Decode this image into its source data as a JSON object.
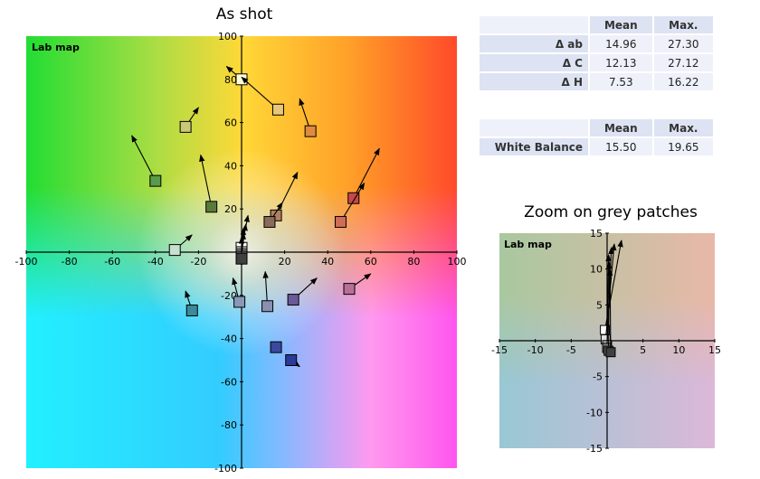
{
  "main_chart": {
    "title": "As shot",
    "map_label": "Lab map",
    "x_ticks": [
      -100,
      -80,
      -60,
      -40,
      -20,
      0,
      20,
      40,
      60,
      80,
      100
    ],
    "y_ticks": [
      100,
      80,
      60,
      40,
      20,
      0,
      -20,
      -40,
      -60,
      -80,
      -100
    ]
  },
  "zoom_chart": {
    "title": "Zoom on grey patches",
    "map_label": "Lab map",
    "x_ticks": [
      -15,
      -10,
      -5,
      0,
      5,
      10,
      15
    ],
    "y_ticks": [
      15,
      10,
      5,
      0,
      -5,
      -10,
      -15
    ]
  },
  "delta_table": {
    "headers": [
      "",
      "Mean",
      "Max."
    ],
    "rows": [
      {
        "label": "Δ ab",
        "mean": "14.96",
        "max": "27.30"
      },
      {
        "label": "Δ C",
        "mean": "12.13",
        "max": "27.12"
      },
      {
        "label": "Δ H",
        "mean": "7.53",
        "max": "16.22"
      }
    ]
  },
  "wb_table": {
    "headers": [
      "",
      "Mean",
      "Max."
    ],
    "rows": [
      {
        "label": "White Balance",
        "mean": "15.50",
        "max": "19.65"
      }
    ]
  },
  "chart_data": [
    {
      "type": "scatter",
      "title": "As shot",
      "xlim": [
        -100,
        100
      ],
      "ylim": [
        -100,
        100
      ],
      "grid": false,
      "points": [
        {
          "x": 0,
          "y": 80,
          "tx": -7,
          "ty": 86,
          "color": "#ffffd8"
        },
        {
          "x": 17,
          "y": 66,
          "tx": 0,
          "ty": 81,
          "color": "#e8c878"
        },
        {
          "x": 32,
          "y": 56,
          "tx": 27,
          "ty": 71,
          "color": "#e08a40"
        },
        {
          "x": -26,
          "y": 58,
          "tx": -20,
          "ty": 67,
          "color": "#c8c878"
        },
        {
          "x": -40,
          "y": 33,
          "tx": -51,
          "ty": 54,
          "color": "#5a9a4a"
        },
        {
          "x": -14,
          "y": 21,
          "tx": -19,
          "ty": 45,
          "color": "#5a7a3a"
        },
        {
          "x": 52,
          "y": 25,
          "tx": 64,
          "ty": 48,
          "color": "#c84848"
        },
        {
          "x": 46,
          "y": 14,
          "tx": 57,
          "ty": 32,
          "color": "#d06c58"
        },
        {
          "x": 16,
          "y": 17,
          "tx": 26,
          "ty": 37,
          "color": "#b08060"
        },
        {
          "x": 13,
          "y": 14,
          "tx": 19,
          "ty": 23,
          "color": "#8a6a5a"
        },
        {
          "x": -31,
          "y": 1,
          "tx": -23,
          "ty": 8,
          "color": "#c8e0d0"
        },
        {
          "x": -23,
          "y": -27,
          "tx": -26,
          "ty": -18,
          "color": "#3a8a98"
        },
        {
          "x": -1,
          "y": -23,
          "tx": -4,
          "ty": -12,
          "color": "#8a98b8"
        },
        {
          "x": 12,
          "y": -25,
          "tx": 11,
          "ty": -9,
          "color": "#8a90b0"
        },
        {
          "x": 24,
          "y": -22,
          "tx": 35,
          "ty": -12,
          "color": "#6a5a98"
        },
        {
          "x": 50,
          "y": -17,
          "tx": 60,
          "ty": -10,
          "color": "#b87098"
        },
        {
          "x": 16,
          "y": -44,
          "tx": 16,
          "ty": -44,
          "color": "#3a4aa0"
        },
        {
          "x": 23,
          "y": -50,
          "tx": 27,
          "ty": -53,
          "color": "#2a3a98"
        },
        {
          "x": 0,
          "y": 2,
          "tx": 3,
          "ty": 17,
          "color": "#ffffff"
        },
        {
          "x": 0,
          "y": 0,
          "tx": 2,
          "ty": 13,
          "color": "#d0d0d0"
        },
        {
          "x": 0,
          "y": -1,
          "tx": 1,
          "ty": 11,
          "color": "#a0a0a0"
        },
        {
          "x": 0,
          "y": -2,
          "tx": 1,
          "ty": 9,
          "color": "#606060"
        },
        {
          "x": 0,
          "y": -3,
          "tx": 0,
          "ty": 7,
          "color": "#404040"
        }
      ]
    },
    {
      "type": "scatter",
      "title": "Zoom on grey patches",
      "xlim": [
        -15,
        15
      ],
      "ylim": [
        -15,
        15
      ],
      "grid": false,
      "points": [
        {
          "x": -0.3,
          "y": 1.5,
          "tx": 2.0,
          "ty": 14.0,
          "color": "#ffffff"
        },
        {
          "x": -0.2,
          "y": 0.2,
          "tx": 1.0,
          "ty": 13.5,
          "color": "#e0e0e0"
        },
        {
          "x": 0.0,
          "y": -0.6,
          "tx": 0.6,
          "ty": 13.0,
          "color": "#b0b0b0"
        },
        {
          "x": 0.0,
          "y": -1.0,
          "tx": 0.2,
          "ty": 12.0,
          "color": "#808080"
        },
        {
          "x": 0.2,
          "y": -1.4,
          "tx": 0.3,
          "ty": 11.0,
          "color": "#606060"
        },
        {
          "x": 0.5,
          "y": -1.6,
          "tx": 0.4,
          "ty": 10.0,
          "color": "#404040"
        }
      ]
    }
  ]
}
